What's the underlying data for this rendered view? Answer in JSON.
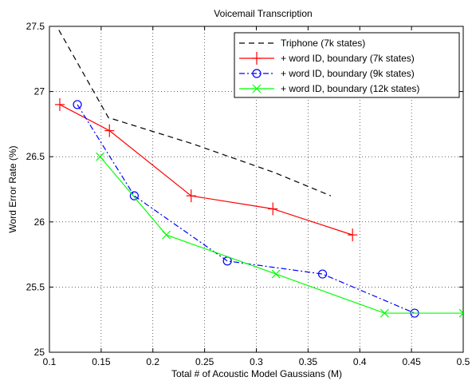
{
  "chart_data": {
    "type": "line",
    "title": "Voicemail Transcription",
    "xlabel": "Total # of Acoustic Model Gaussians (M)",
    "ylabel": "Word Error Rate (%)",
    "xlim": [
      0.1,
      0.5
    ],
    "ylim": [
      25,
      27.5
    ],
    "xticks": [
      "0.1",
      "0.15",
      "0.2",
      "0.25",
      "0.3",
      "0.35",
      "0.4",
      "0.45",
      "0.5"
    ],
    "yticks": [
      "25",
      "25.5",
      "26",
      "26.5",
      "27",
      "27.5"
    ],
    "grid": true,
    "legend_position": "top-right",
    "series": [
      {
        "name": "Triphone (7k states)",
        "color": "#000000",
        "dash": "dashed",
        "marker": "none",
        "x": [
          0.1,
          0.157,
          0.238,
          0.317,
          0.372
        ],
        "y": [
          27.6,
          26.8,
          26.6,
          26.38,
          26.2
        ]
      },
      {
        "name": "+ word ID, boundary (7k states)",
        "color": "#ff0000",
        "dash": "solid",
        "marker": "plus",
        "x": [
          0.11,
          0.158,
          0.237,
          0.316,
          0.393
        ],
        "y": [
          26.9,
          26.7,
          26.2,
          26.1,
          25.9
        ]
      },
      {
        "name": "+ word ID, boundary (9k states)",
        "color": "#0000ff",
        "dash": "dashdot",
        "marker": "circle",
        "x": [
          0.127,
          0.182,
          0.272,
          0.364,
          0.453
        ],
        "y": [
          26.9,
          26.2,
          25.7,
          25.6,
          25.3
        ]
      },
      {
        "name": "+ word ID, boundary (12k states)",
        "color": "#00ff00",
        "dash": "solid",
        "marker": "x",
        "x": [
          0.149,
          0.213,
          0.319,
          0.424,
          0.5
        ],
        "y": [
          26.5,
          25.9,
          25.6,
          25.3,
          25.3
        ]
      }
    ]
  }
}
